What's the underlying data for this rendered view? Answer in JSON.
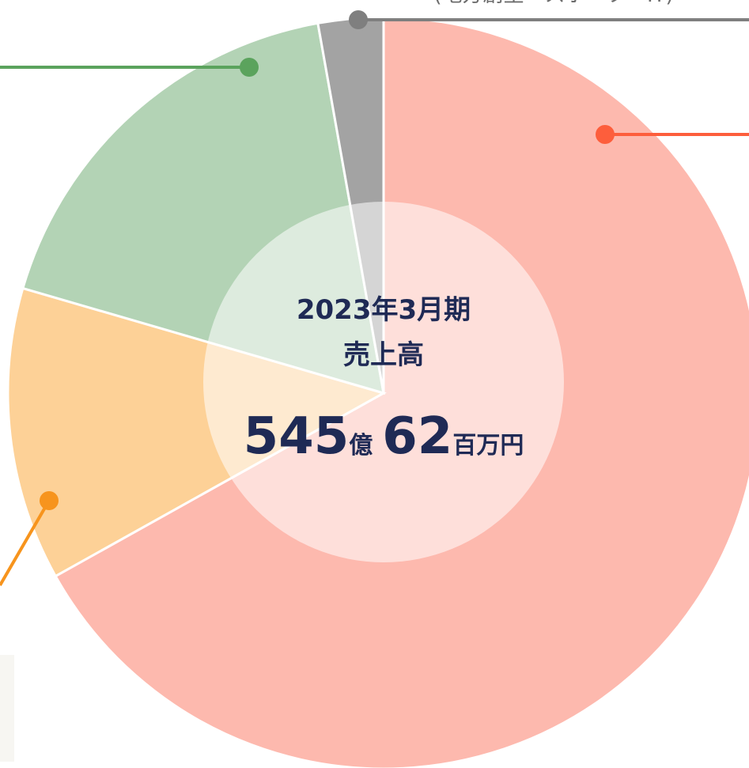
{
  "chart_data": {
    "type": "pie",
    "categories": [
      null,
      null,
      null,
      null
    ],
    "values": [
      66.9,
      12.6,
      17.7,
      2.8
    ],
    "colors": [
      "#fdb9ae",
      "#fdd197",
      "#b3d3b5",
      "#a3a3a3"
    ],
    "start_angle": 0,
    "direction": "clockwise",
    "center_label": {
      "period": "2023年3月期",
      "metric": "売上高",
      "amount_1": "545",
      "unit_1": "億",
      "amount_2": "62",
      "unit_2": "百万円"
    },
    "annotations": [
      "(地方創生・スポーツ・IT)"
    ]
  }
}
